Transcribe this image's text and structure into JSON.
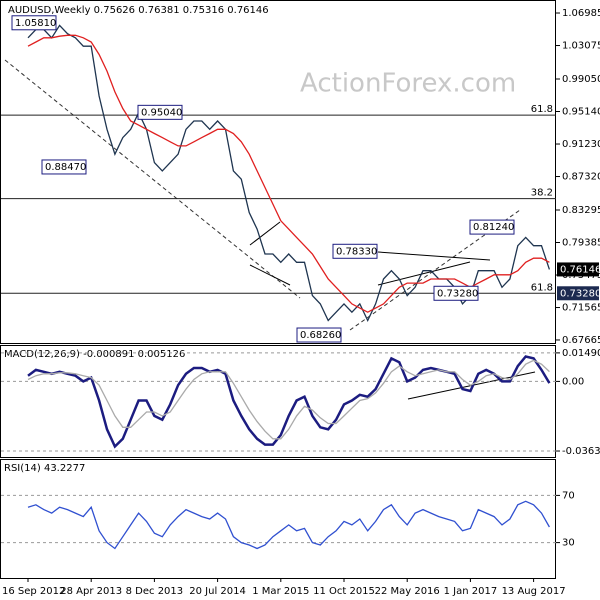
{
  "chart_data": [
    {
      "type": "line",
      "title": "AUDUSD,Weekly 0.75626 0.76381 0.75316 0.76146",
      "watermark": "ActionForex.com",
      "ylim": [
        0.673,
        1.0843
      ],
      "yticks": [
        1.06985,
        1.03075,
        {
          "value": 0.9905,
          "label": "0.99050"
        },
        {
          "value": 0.9514,
          "label": "0.95140"
        },
        {
          "value": 0.9123,
          "label": "0.91230"
        },
        {
          "value": 0.8732,
          "label": "0.87320"
        },
        0.83295,
        0.79385,
        0.75475,
        0.71565,
        0.67665
      ],
      "series": [
        {
          "color": "#1f3550",
          "values": [
            1.04,
            1.05,
            1.05,
            1.04,
            1.055,
            1.045,
            1.04,
            1.03,
            1.03,
            0.97,
            0.93,
            0.9,
            0.92,
            0.93,
            0.95,
            0.93,
            0.89,
            0.88,
            0.89,
            0.9,
            0.93,
            0.94,
            0.94,
            0.93,
            0.94,
            0.93,
            0.88,
            0.87,
            0.83,
            0.81,
            0.78,
            0.78,
            0.77,
            0.78,
            0.77,
            0.77,
            0.73,
            0.72,
            0.7,
            0.71,
            0.72,
            0.71,
            0.72,
            0.7,
            0.72,
            0.75,
            0.76,
            0.75,
            0.73,
            0.74,
            0.76,
            0.76,
            0.75,
            0.75,
            0.74,
            0.72,
            0.73,
            0.76,
            0.76,
            0.76,
            0.74,
            0.75,
            0.79,
            0.8,
            0.79,
            0.79,
            0.76146
          ]
        },
        {
          "color": "#e02020",
          "values": [
            1.03,
            1.035,
            1.04,
            1.04,
            1.042,
            1.043,
            1.043,
            1.04,
            1.035,
            1.02,
            1.0,
            0.975,
            0.955,
            0.94,
            0.935,
            0.93,
            0.925,
            0.92,
            0.915,
            0.91,
            0.91,
            0.915,
            0.92,
            0.925,
            0.93,
            0.93,
            0.925,
            0.915,
            0.9,
            0.88,
            0.86,
            0.84,
            0.82,
            0.81,
            0.8,
            0.79,
            0.78,
            0.765,
            0.75,
            0.74,
            0.73,
            0.72,
            0.715,
            0.71,
            0.715,
            0.72,
            0.73,
            0.74,
            0.745,
            0.745,
            0.745,
            0.75,
            0.75,
            0.75,
            0.75,
            0.745,
            0.74,
            0.745,
            0.75,
            0.755,
            0.755,
            0.755,
            0.76,
            0.77,
            0.775,
            0.775,
            0.77
          ]
        }
      ],
      "levels": [
        {
          "value": 0.947,
          "label": "61.8"
        },
        {
          "value": 0.8467,
          "label": "38.2"
        },
        {
          "value": 0.7328,
          "label": "61.8"
        }
      ],
      "annotations": [
        {
          "value": 1.0581,
          "label": "1.05810"
        },
        {
          "value": 0.9504,
          "label": "0.95040"
        },
        {
          "value": 0.8847,
          "label": "0.88470"
        },
        {
          "value": 0.7833,
          "label": "0.78330"
        },
        {
          "value": 0.8124,
          "label": "0.81240"
        },
        {
          "value": 0.6826,
          "label": "0.68260"
        },
        {
          "value": 0.7328,
          "label": "0.73280"
        }
      ],
      "price_markers": [
        0.76146,
        {
          "value": 0.7328,
          "label": "0.73280"
        }
      ]
    },
    {
      "type": "line",
      "title": "MACD(12,26,9) -0.000891 0.005126",
      "ylim": [
        -0.0395,
        0.0185
      ],
      "yticks": [
        0.014902,
        {
          "value": 0,
          "label": "0.00"
        },
        -0.036374
      ],
      "series": [
        {
          "color": "#1c1c80",
          "values": [
            0.003,
            0.006,
            0.005,
            0.004,
            0.005,
            0.004,
            0.003,
            0.0,
            0.002,
            -0.01,
            -0.025,
            -0.034,
            -0.03,
            -0.02,
            -0.01,
            -0.01,
            -0.018,
            -0.02,
            -0.012,
            -0.002,
            0.004,
            0.007,
            0.007,
            0.005,
            0.006,
            0.004,
            -0.01,
            -0.018,
            -0.025,
            -0.03,
            -0.033,
            -0.033,
            -0.028,
            -0.018,
            -0.01,
            -0.008,
            -0.018,
            -0.024,
            -0.025,
            -0.02,
            -0.012,
            -0.01,
            -0.007,
            -0.008,
            -0.004,
            0.004,
            0.012,
            0.01,
            0.0,
            0.002,
            0.006,
            0.007,
            0.006,
            0.005,
            0.004,
            -0.004,
            -0.005,
            0.004,
            0.006,
            0.004,
            0.0,
            0.0,
            0.008,
            0.013,
            0.012,
            0.006,
            -0.000891
          ]
        },
        {
          "color": "#aaaaaa",
          "values": [
            0.001,
            0.003,
            0.004,
            0.004,
            0.0045,
            0.0045,
            0.004,
            0.003,
            0.002,
            -0.002,
            -0.01,
            -0.018,
            -0.024,
            -0.024,
            -0.02,
            -0.016,
            -0.016,
            -0.018,
            -0.016,
            -0.01,
            -0.004,
            0.001,
            0.004,
            0.005,
            0.005,
            0.005,
            -0.001,
            -0.008,
            -0.015,
            -0.021,
            -0.026,
            -0.03,
            -0.03,
            -0.025,
            -0.018,
            -0.013,
            -0.015,
            -0.019,
            -0.022,
            -0.022,
            -0.018,
            -0.014,
            -0.01,
            -0.009,
            -0.006,
            -0.001,
            0.005,
            0.008,
            0.005,
            0.003,
            0.004,
            0.005,
            0.006,
            0.005,
            0.005,
            0.001,
            -0.002,
            0.0,
            0.003,
            0.004,
            0.002,
            0.001,
            0.004,
            0.009,
            0.011,
            0.009,
            0.005126
          ]
        }
      ]
    },
    {
      "type": "line",
      "title": "RSI(14) 43.2277",
      "ylim": [
        0,
        100
      ],
      "yticks": [
        70,
        30
      ],
      "categories": [
        "16 Sep 2012",
        null,
        null,
        null,
        null,
        null,
        null,
        null,
        "28 Apr 2013",
        null,
        null,
        null,
        null,
        null,
        null,
        null,
        "8 Dec 2013",
        null,
        null,
        null,
        null,
        null,
        null,
        null,
        "20 Jul 2014",
        null,
        null,
        null,
        null,
        null,
        null,
        null,
        "1 Mar 2015",
        null,
        null,
        null,
        null,
        null,
        null,
        null,
        "11 Oct 2015",
        null,
        null,
        null,
        null,
        null,
        null,
        null,
        "22 May 2016",
        null,
        null,
        null,
        null,
        null,
        null,
        null,
        "1 Jan 2017",
        null,
        null,
        null,
        null,
        null,
        null,
        null,
        "13 Aug 2017",
        null,
        null
      ],
      "series": [
        {
          "color": "#3050d0",
          "values": [
            60,
            62,
            58,
            55,
            60,
            58,
            55,
            52,
            60,
            40,
            30,
            25,
            35,
            45,
            55,
            48,
            38,
            35,
            45,
            52,
            58,
            55,
            52,
            50,
            55,
            50,
            35,
            30,
            28,
            25,
            28,
            35,
            40,
            45,
            40,
            42,
            30,
            28,
            35,
            40,
            48,
            45,
            50,
            40,
            48,
            58,
            62,
            52,
            45,
            55,
            58,
            55,
            52,
            50,
            48,
            40,
            42,
            58,
            55,
            52,
            45,
            50,
            62,
            65,
            62,
            55,
            43.2277
          ]
        }
      ]
    }
  ]
}
